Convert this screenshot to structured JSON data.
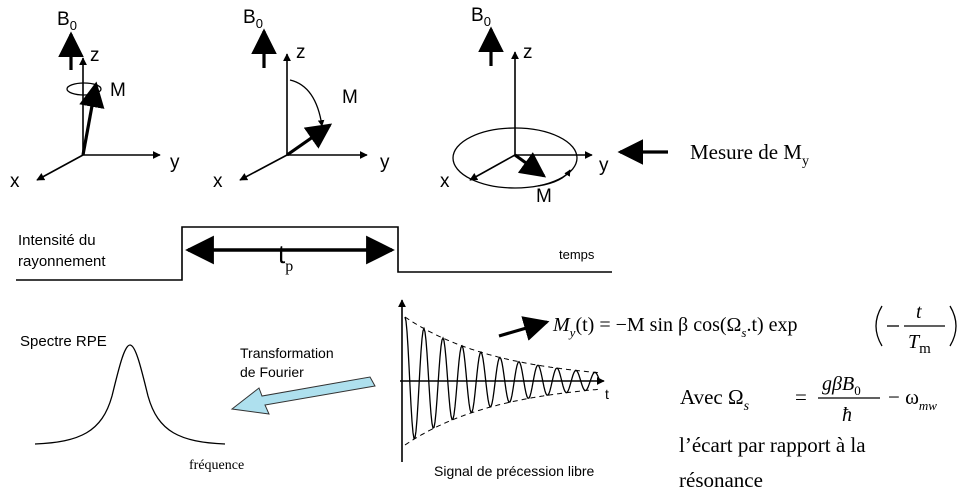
{
  "frames": [
    {
      "b0": "B",
      "b0_sub": "0",
      "z": "z",
      "y": "y",
      "x": "x",
      "m": "M"
    },
    {
      "b0": "B",
      "b0_sub": "0",
      "z": "z",
      "y": "y",
      "x": "x",
      "m": "M"
    },
    {
      "b0": "B",
      "b0_sub": "0",
      "z": "z",
      "y": "y",
      "x": "x",
      "m": "M"
    }
  ],
  "measure": {
    "text": "Mesure de M",
    "sub": "y"
  },
  "pulse": {
    "intensity_line1": "Intensité du",
    "intensity_line2": "rayonnement",
    "tp": "t",
    "tp_sub": "p",
    "time_label": "temps"
  },
  "spectrum": {
    "title": "Spectre RPE",
    "xlabel": "fréquence"
  },
  "fourier": {
    "line1": "Transformation",
    "line2": "de Fourier",
    "arrow_color": "#aee0ee"
  },
  "signal": {
    "caption": "Signal de précession libre",
    "t_label": "t"
  },
  "equation": {
    "lhs": "M",
    "lhs_sub": "y",
    "lhs_arg": "(t) = −M sin β cos(Ω",
    "omega_sub": "s",
    "mid": ".t) exp",
    "frac_num": "t",
    "frac_den": "T",
    "frac_den_sub": "m"
  },
  "avec": {
    "prefix": "Avec Ω",
    "prefix_sub": "s",
    "eq": "=",
    "num": "gβB",
    "num_sub": "0",
    "den": "ħ",
    "minus": "− ω",
    "minus_sub": "mw"
  },
  "note": {
    "line1": "l’écart par rapport à la",
    "line2": "résonance"
  }
}
